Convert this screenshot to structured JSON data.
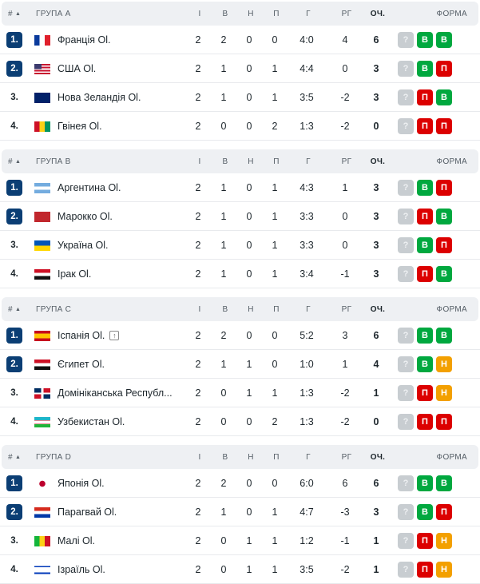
{
  "columns": {
    "hash": "#",
    "sort_indicator": "▲",
    "played": "І",
    "won": "В",
    "drawn": "Н",
    "lost": "П",
    "goals": "Г",
    "goal_diff": "РГ",
    "points": "ОЧ.",
    "form": "ФОРМА"
  },
  "colors": {
    "qualified_badge": "#0b3e74",
    "win": "#00a83f",
    "loss": "#dc0000",
    "draw": "#f3a000",
    "upcoming": "#c8cdd1"
  },
  "form_labels": {
    "W": "В",
    "L": "П",
    "D": "Н",
    "U": "?"
  },
  "groups": [
    {
      "title": "ГРУПА A",
      "teams": [
        {
          "rank": "1.",
          "qualified": true,
          "flag": "france",
          "name": "Франція Ol.",
          "p": "2",
          "w": "2",
          "d": "0",
          "l": "0",
          "g": "4:0",
          "gd": "4",
          "pts": "6",
          "form": [
            "U",
            "W",
            "W"
          ]
        },
        {
          "rank": "2.",
          "qualified": true,
          "flag": "usa",
          "name": "США Ol.",
          "p": "2",
          "w": "1",
          "d": "0",
          "l": "1",
          "g": "4:4",
          "gd": "0",
          "pts": "3",
          "form": [
            "U",
            "W",
            "L"
          ]
        },
        {
          "rank": "3.",
          "qualified": false,
          "flag": "new-zealand",
          "name": "Нова Зеландія Ol.",
          "p": "2",
          "w": "1",
          "d": "0",
          "l": "1",
          "g": "3:5",
          "gd": "-2",
          "pts": "3",
          "form": [
            "U",
            "L",
            "W"
          ]
        },
        {
          "rank": "4.",
          "qualified": false,
          "flag": "guinea",
          "name": "Гвінея Ol.",
          "p": "2",
          "w": "0",
          "d": "0",
          "l": "2",
          "g": "1:3",
          "gd": "-2",
          "pts": "0",
          "form": [
            "U",
            "L",
            "L"
          ]
        }
      ]
    },
    {
      "title": "ГРУПА B",
      "teams": [
        {
          "rank": "1.",
          "qualified": true,
          "flag": "argentina",
          "name": "Аргентина Ol.",
          "p": "2",
          "w": "1",
          "d": "0",
          "l": "1",
          "g": "4:3",
          "gd": "1",
          "pts": "3",
          "form": [
            "U",
            "W",
            "L"
          ]
        },
        {
          "rank": "2.",
          "qualified": true,
          "flag": "morocco",
          "name": "Марокко Ol.",
          "p": "2",
          "w": "1",
          "d": "0",
          "l": "1",
          "g": "3:3",
          "gd": "0",
          "pts": "3",
          "form": [
            "U",
            "L",
            "W"
          ]
        },
        {
          "rank": "3.",
          "qualified": false,
          "flag": "ukraine",
          "name": "Україна Ol.",
          "p": "2",
          "w": "1",
          "d": "0",
          "l": "1",
          "g": "3:3",
          "gd": "0",
          "pts": "3",
          "form": [
            "U",
            "W",
            "L"
          ]
        },
        {
          "rank": "4.",
          "qualified": false,
          "flag": "iraq",
          "name": "Ірак Ol.",
          "p": "2",
          "w": "1",
          "d": "0",
          "l": "1",
          "g": "3:4",
          "gd": "-1",
          "pts": "3",
          "form": [
            "U",
            "L",
            "W"
          ]
        }
      ]
    },
    {
      "title": "ГРУПА C",
      "teams": [
        {
          "rank": "1.",
          "qualified": true,
          "flag": "spain",
          "name": "Іспанія Ol.",
          "rising": true,
          "p": "2",
          "w": "2",
          "d": "0",
          "l": "0",
          "g": "5:2",
          "gd": "3",
          "pts": "6",
          "form": [
            "U",
            "W",
            "W"
          ]
        },
        {
          "rank": "2.",
          "qualified": true,
          "flag": "egypt",
          "name": "Єгипет Ol.",
          "p": "2",
          "w": "1",
          "d": "1",
          "l": "0",
          "g": "1:0",
          "gd": "1",
          "pts": "4",
          "form": [
            "U",
            "W",
            "D"
          ]
        },
        {
          "rank": "3.",
          "qualified": false,
          "flag": "dominican-republic",
          "name": "Домініканська Республ...",
          "p": "2",
          "w": "0",
          "d": "1",
          "l": "1",
          "g": "1:3",
          "gd": "-2",
          "pts": "1",
          "form": [
            "U",
            "L",
            "D"
          ]
        },
        {
          "rank": "4.",
          "qualified": false,
          "flag": "uzbekistan",
          "name": "Узбекистан Ol.",
          "p": "2",
          "w": "0",
          "d": "0",
          "l": "2",
          "g": "1:3",
          "gd": "-2",
          "pts": "0",
          "form": [
            "U",
            "L",
            "L"
          ]
        }
      ]
    },
    {
      "title": "ГРУПА D",
      "teams": [
        {
          "rank": "1.",
          "qualified": true,
          "flag": "japan",
          "name": "Японія Ol.",
          "p": "2",
          "w": "2",
          "d": "0",
          "l": "0",
          "g": "6:0",
          "gd": "6",
          "pts": "6",
          "form": [
            "U",
            "W",
            "W"
          ]
        },
        {
          "rank": "2.",
          "qualified": true,
          "flag": "paraguay",
          "name": "Парагвай Ol.",
          "p": "2",
          "w": "1",
          "d": "0",
          "l": "1",
          "g": "4:7",
          "gd": "-3",
          "pts": "3",
          "form": [
            "U",
            "W",
            "L"
          ]
        },
        {
          "rank": "3.",
          "qualified": false,
          "flag": "mali",
          "name": "Малі Ol.",
          "p": "2",
          "w": "0",
          "d": "1",
          "l": "1",
          "g": "1:2",
          "gd": "-1",
          "pts": "1",
          "form": [
            "U",
            "L",
            "D"
          ]
        },
        {
          "rank": "4.",
          "qualified": false,
          "flag": "israel",
          "name": "Ізраїль Ol.",
          "p": "2",
          "w": "0",
          "d": "1",
          "l": "1",
          "g": "3:5",
          "gd": "-2",
          "pts": "1",
          "form": [
            "U",
            "L",
            "D"
          ]
        }
      ]
    }
  ]
}
